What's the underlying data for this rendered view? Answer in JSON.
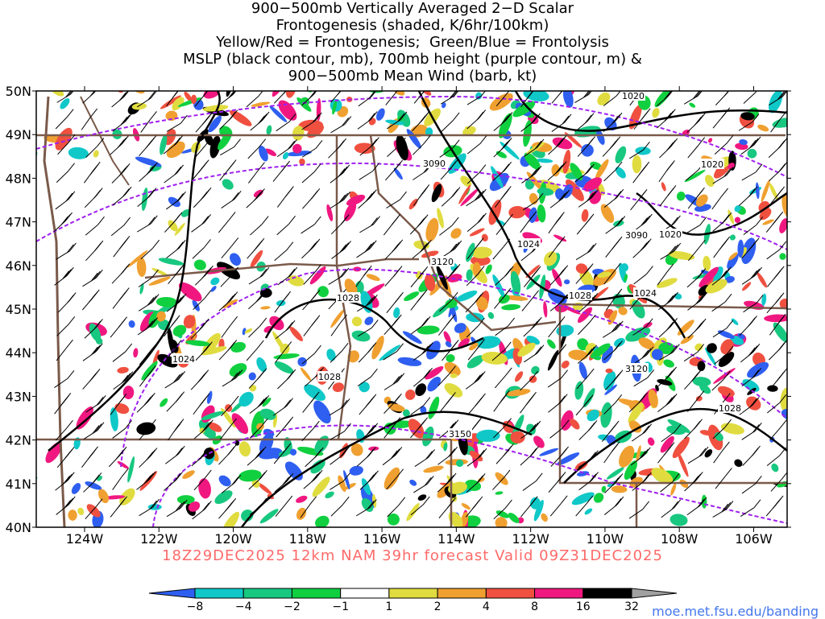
{
  "title_lines": [
    "900−500mb Vertically Averaged 2−D Scalar",
    "Frontogenesis (shaded, K/6hr/100km)",
    "Yellow/Red = Frontogenesis;  Green/Blue = Frontolysis",
    "MSLP (black contour, mb), 700mb height (purple contour, m) &",
    "900−500mb Mean Wind (barb, kt)"
  ],
  "footer": "18Z29DEC2025 12km NAM 39hr forecast Valid 09Z31DEC2025",
  "credit": "moe.met.fsu.edu/banding",
  "lat_labels": [
    "50N",
    "49N",
    "48N",
    "47N",
    "46N",
    "45N",
    "44N",
    "43N",
    "42N",
    "41N",
    "40N"
  ],
  "lon_labels": [
    "124W",
    "122W",
    "120W",
    "118W",
    "116W",
    "114W",
    "112W",
    "110W",
    "108W",
    "106W"
  ],
  "colorbar": {
    "labels": [
      "−8",
      "−4",
      "−2",
      "−1",
      "1",
      "2",
      "4",
      "8",
      "16",
      "32"
    ],
    "colors": [
      "#2f5ff0",
      "#10c8c8",
      "#18c880",
      "#10d040",
      "#ffffff",
      "#e0dc40",
      "#f0a030",
      "#f05040",
      "#f01880",
      "#000000",
      "#a0a0a0"
    ]
  },
  "mslp_labels": [
    "1020",
    "1020",
    "1020",
    "1024",
    "1024",
    "1028",
    "1028",
    "1024",
    "1028",
    "1028"
  ],
  "height_labels": [
    "3090",
    "3090",
    "3120",
    "3120",
    "3150"
  ],
  "colors": {
    "mslp": "#000000",
    "height": "#a020f0",
    "borders": "#7a5a4a",
    "footer": "#ff6a6a",
    "credit": "#4477ee"
  }
}
